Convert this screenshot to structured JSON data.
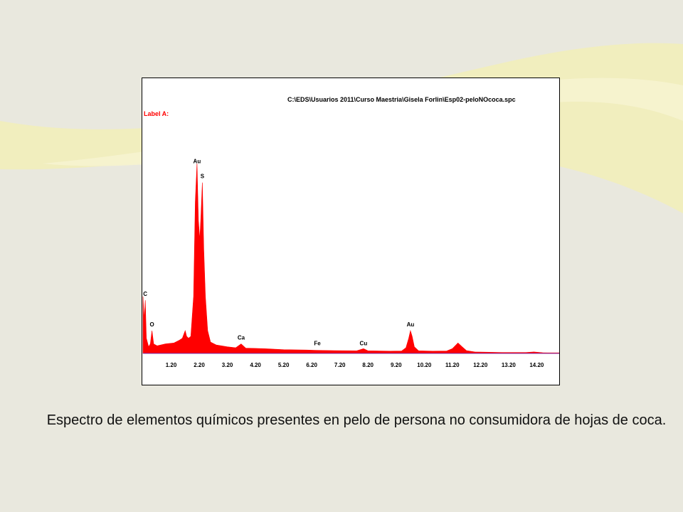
{
  "slide": {
    "caption": "Espectro de elementos químicos presentes en pelo de persona no consumidora de hojas de coca."
  },
  "colors": {
    "background": "#e9e8de",
    "decor": "#f2efb9",
    "spectrum": "#ff0000",
    "label_red": "#ff0000",
    "baseline": "#7a2fb0"
  },
  "chart_data": {
    "type": "area",
    "title": "C:\\EDS\\Usuarios 2011\\Curso Maestria\\Gisela Forlin\\Esp02-peloNOcoca.spc",
    "label": "Label A:",
    "xlabel": "",
    "ylabel": "",
    "xlim": [
      0.2,
      15.0
    ],
    "ylim": [
      0,
      100
    ],
    "x_ticks": [
      "1.20",
      "2.20",
      "3.20",
      "4.20",
      "5.20",
      "6.20",
      "7.20",
      "8.20",
      "9.20",
      "10.20",
      "11.20",
      "12.20",
      "13.20",
      "14.20"
    ],
    "peak_labels": [
      {
        "element": "C",
        "x": 0.28,
        "y": 28
      },
      {
        "element": "O",
        "x": 0.52,
        "y": 12
      },
      {
        "element": "Au",
        "x": 2.12,
        "y": 98
      },
      {
        "element": "S",
        "x": 2.31,
        "y": 90
      },
      {
        "element": "Ca",
        "x": 3.69,
        "y": 5
      },
      {
        "element": "Fe",
        "x": 6.4,
        "y": 2
      },
      {
        "element": "Cu",
        "x": 8.04,
        "y": 2
      },
      {
        "element": "Au",
        "x": 9.71,
        "y": 12
      }
    ],
    "series": [
      {
        "values": [
          [
            0.2,
            30
          ],
          [
            0.24,
            18
          ],
          [
            0.28,
            28
          ],
          [
            0.32,
            8
          ],
          [
            0.4,
            3.5
          ],
          [
            0.46,
            5
          ],
          [
            0.52,
            12
          ],
          [
            0.58,
            5
          ],
          [
            0.7,
            4
          ],
          [
            1.0,
            5
          ],
          [
            1.3,
            5.5
          ],
          [
            1.5,
            7
          ],
          [
            1.6,
            8
          ],
          [
            1.7,
            12
          ],
          [
            1.75,
            9
          ],
          [
            1.82,
            8
          ],
          [
            1.9,
            9
          ],
          [
            2.0,
            30
          ],
          [
            2.06,
            80
          ],
          [
            2.12,
            100
          ],
          [
            2.17,
            70
          ],
          [
            2.22,
            60
          ],
          [
            2.26,
            72
          ],
          [
            2.31,
            90
          ],
          [
            2.36,
            55
          ],
          [
            2.42,
            30
          ],
          [
            2.5,
            12
          ],
          [
            2.6,
            6
          ],
          [
            2.8,
            4.5
          ],
          [
            3.2,
            3.5
          ],
          [
            3.5,
            3
          ],
          [
            3.69,
            5
          ],
          [
            3.85,
            2.8
          ],
          [
            4.5,
            2.5
          ],
          [
            5.2,
            2.0
          ],
          [
            6.0,
            1.8
          ],
          [
            6.4,
            1.6
          ],
          [
            7.0,
            1.5
          ],
          [
            7.8,
            1.4
          ],
          [
            8.04,
            2.5
          ],
          [
            8.2,
            1.4
          ],
          [
            9.0,
            1.2
          ],
          [
            9.4,
            1.3
          ],
          [
            9.55,
            3
          ],
          [
            9.65,
            8
          ],
          [
            9.71,
            12
          ],
          [
            9.77,
            9
          ],
          [
            9.85,
            3.5
          ],
          [
            10.0,
            1.4
          ],
          [
            10.5,
            1.2
          ],
          [
            11.0,
            1.3
          ],
          [
            11.2,
            2.5
          ],
          [
            11.4,
            5.5
          ],
          [
            11.55,
            3.5
          ],
          [
            11.7,
            1.5
          ],
          [
            12.0,
            0.8
          ],
          [
            13.0,
            0.5
          ],
          [
            13.8,
            0.5
          ],
          [
            14.1,
            0.8
          ],
          [
            14.4,
            0.4
          ],
          [
            15.0,
            0.3
          ]
        ]
      }
    ]
  }
}
